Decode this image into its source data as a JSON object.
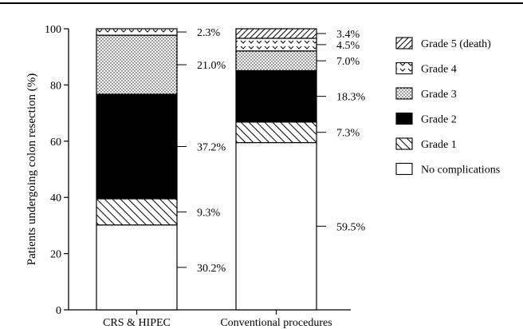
{
  "chart_data": {
    "type": "bar",
    "stacked": true,
    "categories": [
      "CRS & HIPEC",
      "Conventional procedures"
    ],
    "ylabel": "Patients undergoing colon resection (%)",
    "xlabel": "",
    "ylim": [
      0,
      100
    ],
    "yticks": [
      0,
      20,
      40,
      60,
      80,
      100
    ],
    "grid": false,
    "legend_position": "right",
    "series": [
      {
        "name": "No complications",
        "pattern": "none",
        "values": [
          30.2,
          59.5
        ],
        "labels": [
          "30.2%",
          "59.5%"
        ]
      },
      {
        "name": "Grade 1",
        "pattern": "diagonal-hatch",
        "values": [
          9.3,
          7.3
        ],
        "labels": [
          "9.3%",
          "7.3%"
        ]
      },
      {
        "name": "Grade 2",
        "pattern": "solid-black",
        "values": [
          37.2,
          18.3
        ],
        "labels": [
          "37.2%",
          "18.3%"
        ]
      },
      {
        "name": "Grade 3",
        "pattern": "stipple",
        "values": [
          21.0,
          7.0
        ],
        "labels": [
          "21.0%",
          "7.0%"
        ]
      },
      {
        "name": "Grade 4",
        "pattern": "chevron",
        "values": [
          2.3,
          4.5
        ],
        "labels": [
          "2.3%",
          "4.5%"
        ]
      },
      {
        "name": "Grade 5 (death)",
        "pattern": "diagonal-hatch-rev",
        "values": [
          0.0,
          3.4
        ],
        "labels": [
          "",
          "3.4%"
        ]
      }
    ],
    "legend_order": [
      "Grade 5 (death)",
      "Grade 4",
      "Grade 3",
      "Grade 2",
      "Grade 1",
      "No complications"
    ]
  }
}
